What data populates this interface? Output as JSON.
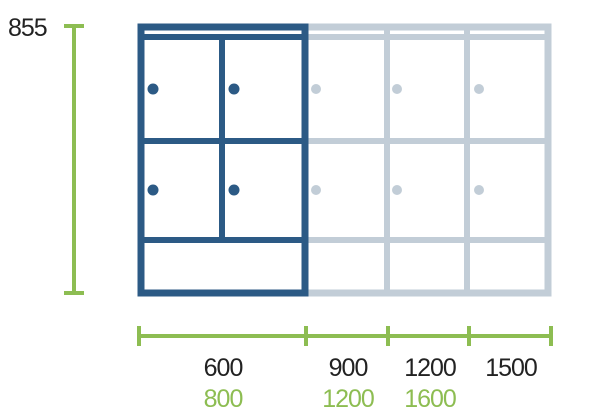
{
  "colors": {
    "highlighted_unit": "#2c5a85",
    "extension_units": "#c2cdd7",
    "dimension_lines": "#8dbd52",
    "primary_text": "#222222",
    "secondary_text": "#8dbd52"
  },
  "height_label": "855",
  "width_labels": [
    {
      "primary": "600",
      "secondary": "800"
    },
    {
      "primary": "900",
      "secondary": "1200"
    },
    {
      "primary": "1200",
      "secondary": "1600"
    },
    {
      "primary": "1500",
      "secondary": ""
    }
  ]
}
